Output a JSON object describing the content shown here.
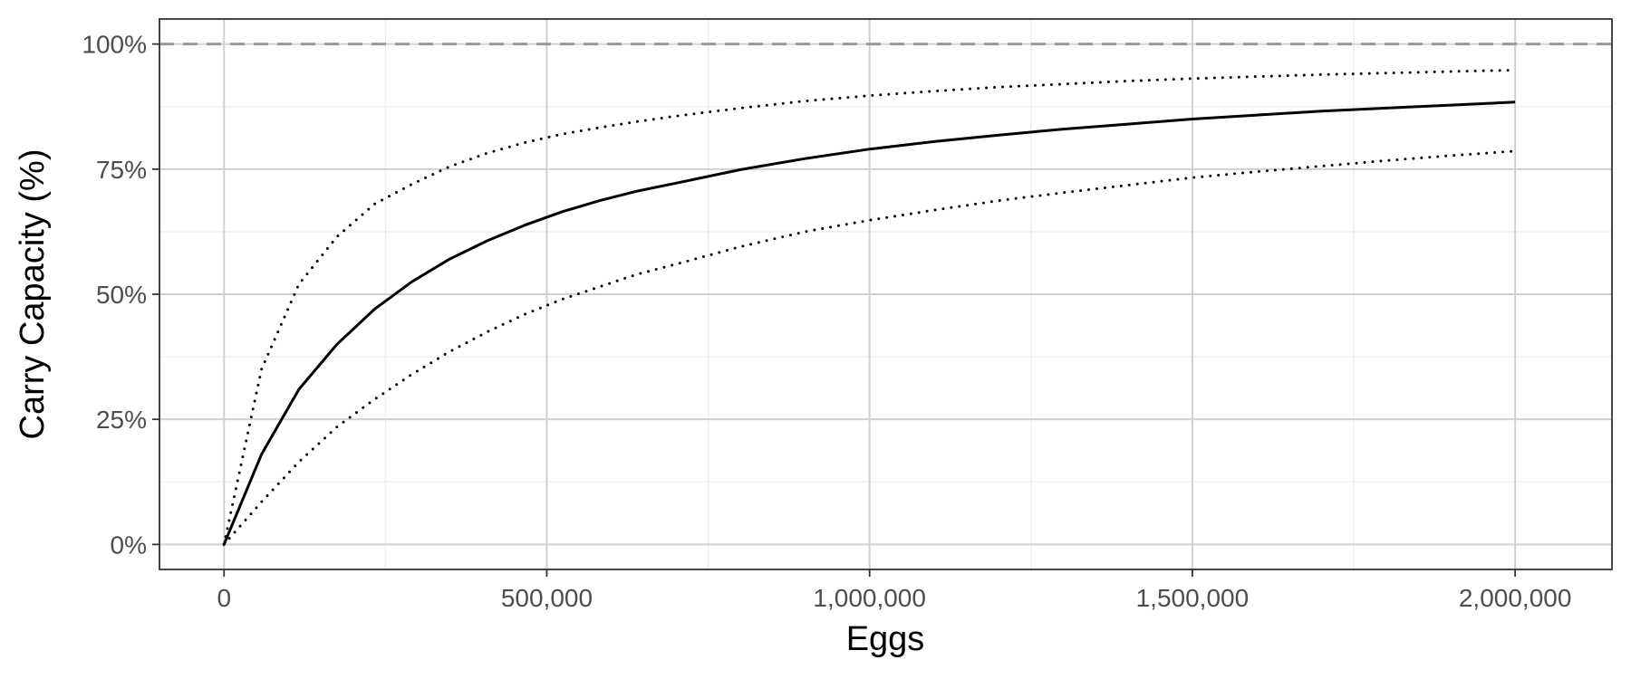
{
  "chart_data": {
    "type": "line",
    "title": "",
    "xlabel": "Eggs",
    "ylabel": "Carry Capacity (%)",
    "xlim": [
      -100000,
      2150000
    ],
    "ylim": [
      -0.05,
      1.05
    ],
    "x_ticks": [
      0,
      500000,
      1000000,
      1500000,
      2000000
    ],
    "x_tick_labels": [
      "0",
      "500,000",
      "1,000,000",
      "1,500,000",
      "2,000,000"
    ],
    "x_minor_ticks": [
      250000,
      750000,
      1250000,
      1750000
    ],
    "y_ticks": [
      0,
      0.25,
      0.5,
      0.75,
      1.0
    ],
    "y_tick_labels": [
      "0%",
      "25%",
      "50%",
      "75%",
      "100%"
    ],
    "y_minor_ticks": [
      0.125,
      0.375,
      0.625,
      0.875
    ],
    "grid": true,
    "reference_line": {
      "y": 1.0,
      "style": "dashed",
      "color": "#999999"
    },
    "x": [
      0,
      58000,
      116000,
      175000,
      233000,
      291000,
      349000,
      408000,
      466000,
      524000,
      582000,
      640000,
      700000,
      800000,
      900000,
      1000000,
      1100000,
      1200000,
      1300000,
      1400000,
      1500000,
      1600000,
      1700000,
      1800000,
      1900000,
      2000000
    ],
    "series": [
      {
        "style": "solid",
        "values": [
          0.0,
          0.18,
          0.31,
          0.4,
          0.47,
          0.525,
          0.57,
          0.607,
          0.638,
          0.665,
          0.687,
          0.706,
          0.722,
          0.749,
          0.771,
          0.79,
          0.805,
          0.818,
          0.83,
          0.84,
          0.85,
          0.858,
          0.866,
          0.872,
          0.878,
          0.884
        ]
      },
      {
        "style": "dotted",
        "values": [
          0.0,
          0.35,
          0.52,
          0.615,
          0.68,
          0.72,
          0.755,
          0.782,
          0.803,
          0.82,
          0.833,
          0.845,
          0.856,
          0.872,
          0.886,
          0.897,
          0.906,
          0.914,
          0.92,
          0.926,
          0.931,
          0.935,
          0.939,
          0.942,
          0.945,
          0.948
        ]
      },
      {
        "style": "dotted",
        "values": [
          0.0,
          0.085,
          0.165,
          0.235,
          0.29,
          0.34,
          0.385,
          0.425,
          0.46,
          0.49,
          0.515,
          0.54,
          0.56,
          0.595,
          0.625,
          0.648,
          0.668,
          0.687,
          0.703,
          0.718,
          0.733,
          0.745,
          0.756,
          0.767,
          0.777,
          0.786
        ]
      }
    ]
  }
}
